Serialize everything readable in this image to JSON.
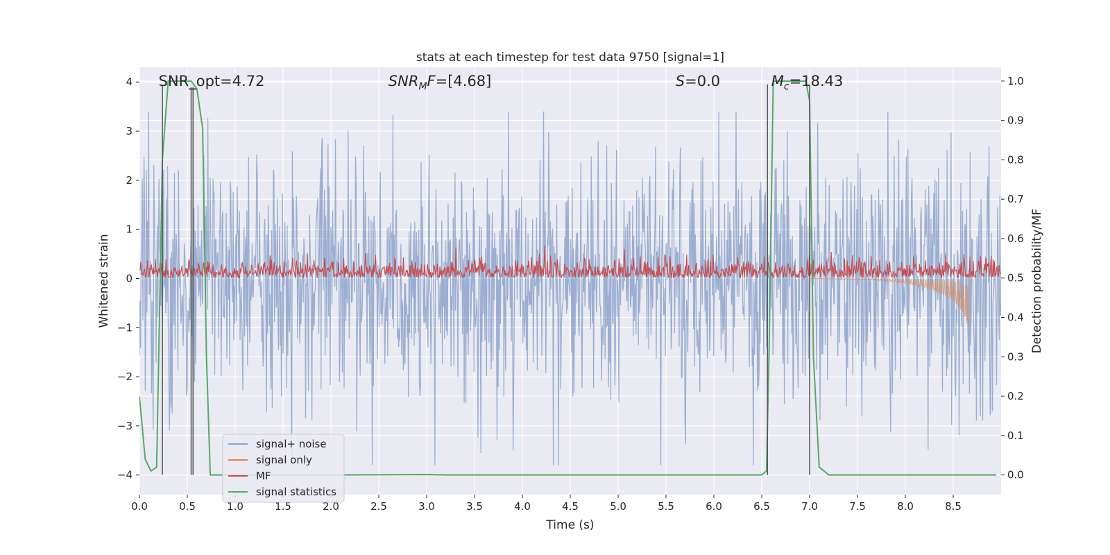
{
  "chart_data": {
    "type": "line",
    "title": "stats at each timestep for test data 9750 [signal=1]",
    "xlabel": "Time (s)",
    "ylabel": "Whitened strain",
    "ylabel_right": "Detection probability/MF",
    "xlim": [
      0,
      9.0
    ],
    "ylim": [
      -4.4,
      4.3
    ],
    "ylim_right": [
      -0.05,
      1.035
    ],
    "x_ticks": [
      0.0,
      0.5,
      1.0,
      1.5,
      2.0,
      2.5,
      3.0,
      3.5,
      4.0,
      4.5,
      5.0,
      5.5,
      6.0,
      6.5,
      7.0,
      7.5,
      8.0,
      8.5
    ],
    "x_tick_labels": [
      "0.0",
      "0.5",
      "1.0",
      "1.5",
      "2.0",
      "2.5",
      "3.0",
      "3.5",
      "4.0",
      "4.5",
      "5.0",
      "5.5",
      "6.0",
      "6.5",
      "7.0",
      "7.5",
      "8.0",
      "8.5"
    ],
    "y_ticks": [
      4,
      3,
      2,
      1,
      0,
      -1,
      -2,
      -3,
      -4
    ],
    "y_tick_labels": [
      "4",
      "3",
      "2",
      "1",
      "0",
      "−1",
      "−2",
      "−3",
      "−4"
    ],
    "y_ticks_right": [
      1.0,
      0.9,
      0.8,
      0.7,
      0.6,
      0.5,
      0.4,
      0.3,
      0.2,
      0.1,
      0.0
    ],
    "y_tick_labels_right": [
      "1.0",
      "0.9",
      "0.8",
      "0.7",
      "0.6",
      "0.5",
      "0.4",
      "0.3",
      "0.2",
      "0.1",
      "0.0"
    ],
    "grid": true,
    "annotations": [
      {
        "text": "SNR_opt=4.72",
        "x": 0.2
      },
      {
        "text": "=[4.68]",
        "prefix": "SNR",
        "sub": "M",
        "suffix": "F",
        "x": 2.6
      },
      {
        "text": "=0.0",
        "prefix": "S",
        "x": 5.6
      },
      {
        "text": "=18.43",
        "prefix": "M",
        "sub": "c",
        "x": 6.6
      }
    ],
    "legend": {
      "placement": "lower-left",
      "entries": [
        {
          "label": "signal+ noise",
          "color": "#4c72b0"
        },
        {
          "label": "signal only",
          "color": "#dd8452"
        },
        {
          "label": "MF",
          "color": "#c44e52"
        },
        {
          "label": "signal statistics",
          "color": "#55a868"
        }
      ]
    },
    "series": [
      {
        "name": "signal+ noise",
        "axis": "left",
        "color": "#4c72b0",
        "description": "dense whitened strain, roughly between -3.8 and 3.4",
        "amplitude_max": 3.4,
        "amplitude_min": -3.8
      },
      {
        "name": "signal only",
        "axis": "left",
        "color": "#dd8452",
        "x": [
          7.6,
          7.8,
          8.0,
          8.2,
          8.4,
          8.5,
          8.6,
          8.66
        ],
        "envelope": [
          0.02,
          0.05,
          0.1,
          0.18,
          0.32,
          0.45,
          0.68,
          1.0
        ]
      },
      {
        "name": "MF",
        "axis": "right",
        "color": "#c44e52",
        "baseline": 0.5,
        "typical_max": 0.57,
        "peak_max": 0.62
      },
      {
        "name": "signal statistics",
        "axis": "right",
        "color": "#55a868",
        "x": [
          0.0,
          0.06,
          0.12,
          0.18,
          0.24,
          0.3,
          0.36,
          0.42,
          0.48,
          0.54,
          0.6,
          0.66,
          0.7,
          0.74,
          0.78,
          0.85,
          1.0,
          2.0,
          3.0,
          3.2,
          4.0,
          5.0,
          6.0,
          6.5,
          6.55,
          6.58,
          6.62,
          6.7,
          6.8,
          6.9,
          6.96,
          7.0,
          7.04,
          7.1,
          7.2,
          8.0,
          8.95
        ],
        "y": [
          0.2,
          0.04,
          0.01,
          0.02,
          0.8,
          1.0,
          1.0,
          1.0,
          1.0,
          1.0,
          0.98,
          0.88,
          0.3,
          0.0,
          0.0,
          0.0,
          0.0,
          0.0,
          0.001,
          0.0,
          0.0,
          0.0,
          0.0,
          0.0,
          0.01,
          0.35,
          1.0,
          1.0,
          1.0,
          1.0,
          1.0,
          0.95,
          0.3,
          0.02,
          0.0,
          0.0,
          0.0
        ]
      }
    ],
    "vertical_markers": [
      {
        "x": 0.24,
        "y_top": 3.95,
        "color": "#555555"
      },
      {
        "x": 0.54,
        "y_top": 3.9,
        "color": "#555555"
      },
      {
        "x": 0.56,
        "y_top": 3.9,
        "color": "#555555"
      },
      {
        "x": 6.56,
        "y_top": 3.95,
        "color": "#555555"
      },
      {
        "x": 7.0,
        "y_top": 3.95,
        "color": "#555555"
      }
    ]
  }
}
